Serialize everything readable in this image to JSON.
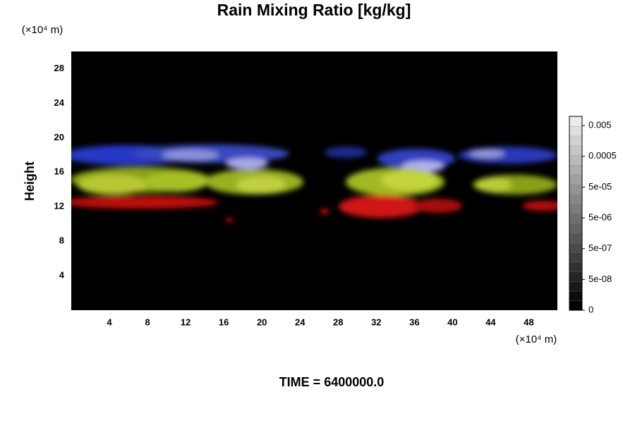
{
  "chart_data": {
    "type": "field",
    "title": "Rain Mixing Ratio [kg/kg]",
    "ylabel": "Height",
    "x_unit": "(×10⁴ m)",
    "y_unit": "(×10⁴ m)",
    "annotation": "TIME = 6400000.0",
    "xlim": [
      0,
      51
    ],
    "ylim": [
      0,
      30
    ],
    "xticks": [
      4,
      8,
      12,
      16,
      20,
      24,
      28,
      32,
      36,
      40,
      44,
      48
    ],
    "yticks": [
      4,
      8,
      12,
      16,
      20,
      24,
      28
    ],
    "colorbar": {
      "log_scale": true,
      "lim": [
        5e-09,
        0.01
      ],
      "ticks": [
        0,
        {
          "value": 5e-08,
          "label": "5e-08"
        },
        {
          "value": 5e-07,
          "label": "5e-07"
        },
        {
          "value": 5e-06,
          "label": "5e-06"
        },
        {
          "value": 5e-05,
          "label": "5e-05"
        },
        0.0005,
        0.005
      ]
    }
  }
}
